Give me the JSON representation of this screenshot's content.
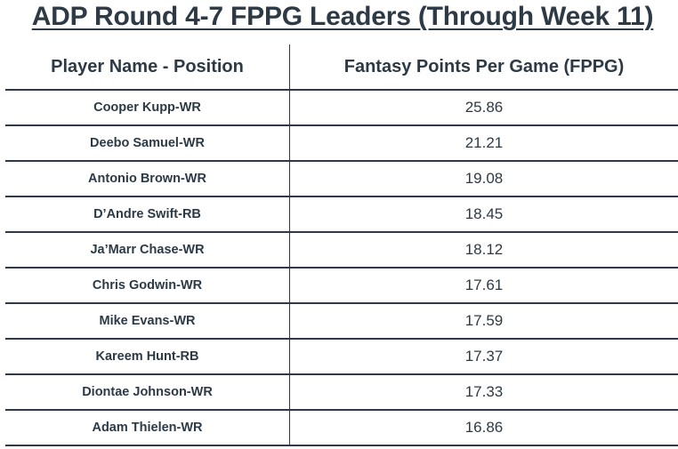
{
  "chart_data": {
    "type": "table",
    "title": "ADP Round 4-7 FPPG Leaders (Through Week 11)",
    "columns": [
      "Player Name - Position",
      "Fantasy Points Per Game (FPPG)"
    ],
    "rows": [
      {
        "player": "Cooper Kupp-WR",
        "fppg": "25.86"
      },
      {
        "player": "Deebo Samuel-WR",
        "fppg": "21.21"
      },
      {
        "player": "Antonio Brown-WR",
        "fppg": "19.08"
      },
      {
        "player": "D’Andre Swift-RB",
        "fppg": "18.45"
      },
      {
        "player": "Ja’Marr Chase-WR",
        "fppg": "18.12"
      },
      {
        "player": "Chris Godwin-WR",
        "fppg": "17.61"
      },
      {
        "player": "Mike Evans-WR",
        "fppg": "17.59"
      },
      {
        "player": "Kareem Hunt-RB",
        "fppg": "17.37"
      },
      {
        "player": "Diontae Johnson-WR",
        "fppg": "17.33"
      },
      {
        "player": "Adam Thielen-WR",
        "fppg": "16.86"
      }
    ],
    "colors": {
      "text": "#2d3a46",
      "rule": "#2d3a46",
      "background": "#ffffff"
    }
  }
}
